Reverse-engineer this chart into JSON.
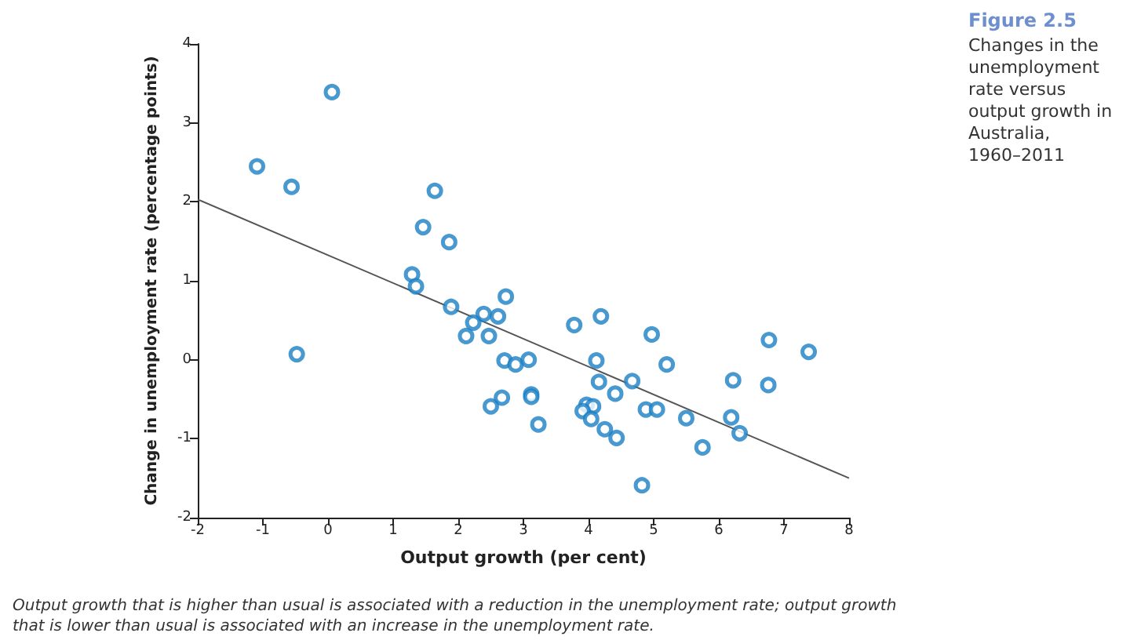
{
  "chart_data": {
    "type": "scatter",
    "title": "Figure 2.5",
    "subtitle": "Changes in the unemployment rate versus output growth in Australia, 1960–2011",
    "xlabel": "Output growth (per cent)",
    "ylabel": "Change in unemployment rate (percentage points)",
    "annotations": [
      "Output growth that is higher than usual is associated with a reduction in the unemployment rate; output growth that is lower than usual is associated with an increase in the unemployment rate."
    ],
    "series": [
      {
        "color": "#1a7fc4",
        "marker": "circle",
        "x": [
          -1.09,
          -0.56,
          0.06,
          -0.48,
          1.64,
          1.46,
          1.86,
          1.29,
          1.35,
          1.89,
          2.73,
          2.39,
          2.61,
          2.23,
          2.12,
          2.47,
          2.71,
          2.88,
          3.08,
          3.12,
          3.12,
          2.67,
          2.5,
          3.23,
          3.78,
          4.19,
          4.12,
          4.16,
          4.41,
          4.67,
          3.97,
          4.07,
          3.91,
          4.04,
          4.25,
          4.43,
          4.97,
          5.2,
          4.88,
          5.05,
          4.82,
          5.5,
          5.75,
          6.22,
          6.19,
          6.32,
          6.77,
          6.76,
          7.38
        ],
        "values": [
          2.45,
          2.19,
          3.39,
          0.07,
          2.14,
          1.68,
          1.49,
          1.08,
          0.93,
          0.67,
          0.8,
          0.58,
          0.55,
          0.47,
          0.3,
          0.3,
          -0.01,
          -0.06,
          0.0,
          -0.44,
          -0.47,
          -0.48,
          -0.59,
          -0.82,
          0.44,
          0.55,
          -0.01,
          -0.28,
          -0.43,
          -0.27,
          -0.57,
          -0.59,
          -0.65,
          -0.75,
          -0.88,
          -0.99,
          0.32,
          -0.06,
          -0.63,
          -0.63,
          -1.59,
          -0.74,
          -1.11,
          -0.26,
          -0.73,
          -0.93,
          0.25,
          -0.32,
          0.1
        ]
      },
      {
        "type": "line",
        "color": "#555555",
        "marker": "none",
        "x": [
          -2,
          8
        ],
        "values": [
          2.03,
          -1.5
        ]
      }
    ],
    "xlim": [
      -2,
      8
    ],
    "xticks": [
      -2,
      -1,
      0,
      1,
      2,
      3,
      4,
      5,
      6,
      7,
      8
    ],
    "ylim": [
      -2,
      4
    ],
    "yticks": [
      -2,
      -1,
      0,
      1,
      2,
      3,
      4
    ]
  }
}
